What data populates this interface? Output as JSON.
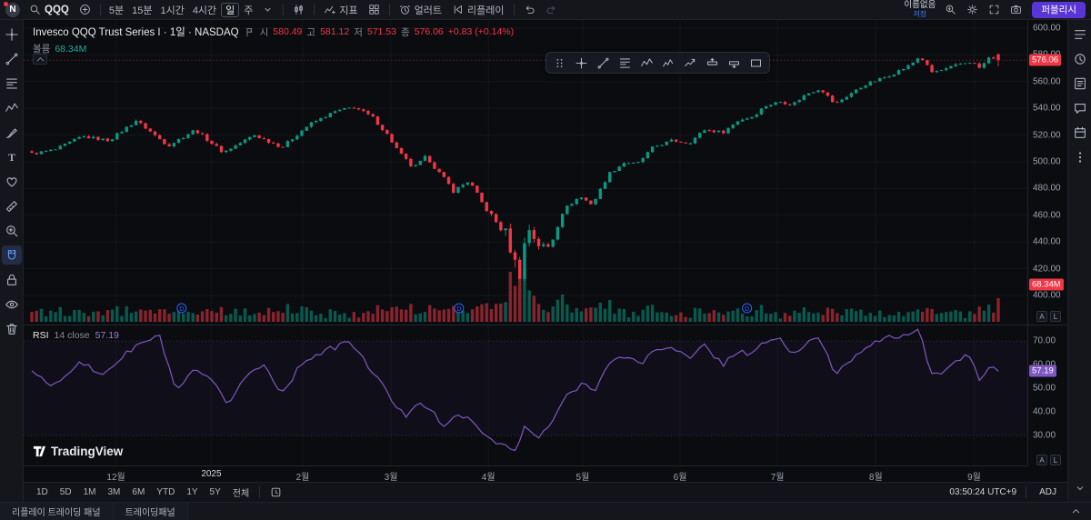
{
  "colors": {
    "bg": "#0b0c10",
    "panel": "#14161c",
    "border": "#1f222b",
    "green": "#089981",
    "red": "#f23645",
    "purple": "#7e57c2",
    "blue": "#2962ff",
    "publish": "#5a35d6",
    "volume_value": "#26a69a"
  },
  "toolbar": {
    "avatar_letter": "N",
    "symbol": "QQQ",
    "intervals": [
      "5분",
      "15분",
      "1시간",
      "4시간"
    ],
    "interval_selected": "일",
    "interval_next": "주",
    "indicators_label": "지표",
    "alert_label": "얼러트",
    "replay_label": "리플레이",
    "layout_name": "이름없음",
    "save_label": "저장",
    "publish_label": "퍼블리시"
  },
  "legend": {
    "title": "Invesco QQQ Trust Series I · 1일 · NASDAQ",
    "open_label": "시",
    "open": "580.49",
    "high_label": "고",
    "high": "581.12",
    "low_label": "저",
    "low": "571.53",
    "close_label": "종",
    "close": "576.06",
    "change": "+0.83 (+0.14%)",
    "volume_label": "볼륨",
    "volume_value": "68.34M"
  },
  "rsi_legend": {
    "name": "RSI",
    "params": "14 close",
    "value": "57.19"
  },
  "axes": {
    "price_labels": [
      "600.00",
      "580.00",
      "560.00",
      "540.00",
      "520.00",
      "500.00",
      "480.00",
      "460.00",
      "440.00",
      "420.00",
      "400.00"
    ],
    "price_tag": "576.06",
    "volume_tag": "68.34M",
    "rsi_labels": [
      "70.00",
      "60.00",
      "50.00",
      "40.00",
      "30.00"
    ],
    "rsi_tag": "57.19",
    "scale_buttons": [
      "A",
      "L"
    ]
  },
  "time_axis": {
    "labels": [
      {
        "text": "12월",
        "f": 0.092
      },
      {
        "text": "2025",
        "f": 0.187,
        "year": true
      },
      {
        "text": "2월",
        "f": 0.278
      },
      {
        "text": "3월",
        "f": 0.366
      },
      {
        "text": "4월",
        "f": 0.463
      },
      {
        "text": "5월",
        "f": 0.557
      },
      {
        "text": "6월",
        "f": 0.654
      },
      {
        "text": "7월",
        "f": 0.751
      },
      {
        "text": "8월",
        "f": 0.849
      },
      {
        "text": "9월",
        "f": 0.947
      }
    ]
  },
  "bottom_toolbar": {
    "ranges": [
      "1D",
      "5D",
      "1M",
      "3M",
      "6M",
      "YTD",
      "1Y",
      "5Y",
      "전체"
    ],
    "clock": "03:50:24",
    "timezone": "UTC+9",
    "adj": "ADJ"
  },
  "status_bar": {
    "tabs": [
      "리플레이 트레이딩 패널",
      "트레이딩패널"
    ]
  },
  "branding": {
    "name": "TradingView"
  },
  "left_rail": [
    "crosshair",
    "trend-line",
    "fib-retracement",
    "pattern",
    "brush",
    "text",
    "emoji",
    "measure",
    "zoom",
    "magnet",
    "lock",
    "eye",
    "trash"
  ],
  "right_rail": [
    "watchlist",
    "alert",
    "news",
    "chat",
    "calendar",
    "more"
  ],
  "floating_toolbar": [
    "drag-handle",
    "cross-line",
    "trend-line",
    "fib-retracement",
    "pattern",
    "elliott",
    "forecast",
    "long-position",
    "short-position",
    "rectangle"
  ],
  "chart_data": {
    "type": "candlestick",
    "symbol": "QQQ",
    "interval": "1일",
    "exchange": "NASDAQ",
    "last_candle": {
      "open": 580.49,
      "high": 581.12,
      "low": 571.53,
      "close": 576.06,
      "change": 0.83,
      "change_pct": 0.14,
      "volume": "68.34M"
    },
    "rsi_last": 57.19,
    "price_axis_range": [
      400,
      600
    ],
    "rsi_band": [
      30,
      70
    ],
    "candle_count": 205,
    "price_anchors": [
      [
        0,
        506
      ],
      [
        0.024,
        509
      ],
      [
        0.052,
        519
      ],
      [
        0.08,
        516
      ],
      [
        0.108,
        531
      ],
      [
        0.141,
        512
      ],
      [
        0.169,
        524
      ],
      [
        0.198,
        507
      ],
      [
        0.23,
        520
      ],
      [
        0.259,
        511
      ],
      [
        0.287,
        528
      ],
      [
        0.315,
        538
      ],
      [
        0.334,
        541
      ],
      [
        0.353,
        533
      ],
      [
        0.367,
        521
      ],
      [
        0.381,
        506
      ],
      [
        0.395,
        495
      ],
      [
        0.409,
        504
      ],
      [
        0.423,
        490
      ],
      [
        0.437,
        478
      ],
      [
        0.452,
        486
      ],
      [
        0.466,
        469
      ],
      [
        0.48,
        455
      ],
      [
        0.491,
        446
      ],
      [
        0.5,
        424
      ],
      [
        0.505,
        417
      ],
      [
        0.513,
        452
      ],
      [
        0.524,
        438
      ],
      [
        0.536,
        436
      ],
      [
        0.55,
        464
      ],
      [
        0.567,
        474
      ],
      [
        0.58,
        468
      ],
      [
        0.597,
        491
      ],
      [
        0.614,
        500
      ],
      [
        0.626,
        498
      ],
      [
        0.643,
        511
      ],
      [
        0.663,
        516
      ],
      [
        0.68,
        514
      ],
      [
        0.696,
        524
      ],
      [
        0.715,
        522
      ],
      [
        0.731,
        531
      ],
      [
        0.746,
        534
      ],
      [
        0.759,
        542
      ],
      [
        0.774,
        545
      ],
      [
        0.787,
        543
      ],
      [
        0.802,
        551
      ],
      [
        0.816,
        555
      ],
      [
        0.831,
        543
      ],
      [
        0.847,
        551
      ],
      [
        0.863,
        558
      ],
      [
        0.878,
        562
      ],
      [
        0.894,
        567
      ],
      [
        0.908,
        572
      ],
      [
        0.919,
        579
      ],
      [
        0.931,
        567
      ],
      [
        0.945,
        569
      ],
      [
        0.959,
        573
      ],
      [
        0.972,
        575
      ],
      [
        0.981,
        570
      ],
      [
        0.992,
        579
      ],
      [
        1,
        576.06
      ]
    ],
    "rsi_anchors": [
      [
        0,
        58
      ],
      [
        0.02,
        50
      ],
      [
        0.05,
        62
      ],
      [
        0.07,
        55
      ],
      [
        0.108,
        68
      ],
      [
        0.132,
        72
      ],
      [
        0.15,
        48
      ],
      [
        0.169,
        58
      ],
      [
        0.188,
        52
      ],
      [
        0.202,
        43
      ],
      [
        0.221,
        55
      ],
      [
        0.24,
        60
      ],
      [
        0.259,
        48
      ],
      [
        0.282,
        62
      ],
      [
        0.306,
        66
      ],
      [
        0.329,
        70
      ],
      [
        0.343,
        62
      ],
      [
        0.357,
        55
      ],
      [
        0.372,
        45
      ],
      [
        0.386,
        38
      ],
      [
        0.4,
        45
      ],
      [
        0.414,
        40
      ],
      [
        0.428,
        33
      ],
      [
        0.442,
        40
      ],
      [
        0.456,
        35
      ],
      [
        0.47,
        30
      ],
      [
        0.483,
        27
      ],
      [
        0.492,
        25
      ],
      [
        0.501,
        23
      ],
      [
        0.511,
        35
      ],
      [
        0.522,
        28
      ],
      [
        0.536,
        34
      ],
      [
        0.55,
        45
      ],
      [
        0.569,
        52
      ],
      [
        0.583,
        50
      ],
      [
        0.597,
        60
      ],
      [
        0.616,
        64
      ],
      [
        0.63,
        60
      ],
      [
        0.644,
        66
      ],
      [
        0.663,
        68
      ],
      [
        0.68,
        62
      ],
      [
        0.696,
        68
      ],
      [
        0.715,
        60
      ],
      [
        0.731,
        66
      ],
      [
        0.746,
        64
      ],
      [
        0.759,
        70
      ],
      [
        0.774,
        71
      ],
      [
        0.787,
        64
      ],
      [
        0.802,
        69
      ],
      [
        0.816,
        71
      ],
      [
        0.831,
        56
      ],
      [
        0.847,
        62
      ],
      [
        0.863,
        68
      ],
      [
        0.878,
        70
      ],
      [
        0.894,
        72
      ],
      [
        0.908,
        73
      ],
      [
        0.919,
        74
      ],
      [
        0.931,
        55
      ],
      [
        0.945,
        58
      ],
      [
        0.959,
        62
      ],
      [
        0.972,
        64
      ],
      [
        0.981,
        52
      ],
      [
        0.992,
        60
      ],
      [
        1,
        57.19
      ]
    ],
    "dividend_markers": {
      "label": "D",
      "fracs": [
        0.155,
        0.442,
        0.74
      ]
    }
  }
}
